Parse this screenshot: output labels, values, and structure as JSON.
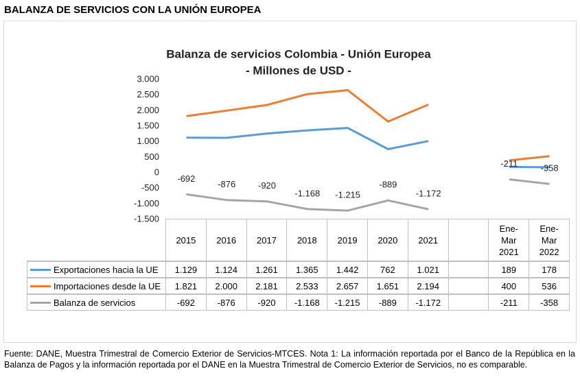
{
  "heading": "BALANZA DE SERVICIOS CON LA UNIÓN EUROPEA",
  "chart_data": {
    "type": "line",
    "title": "Balanza de servicios Colombia - Unión Europea",
    "subtitle": "- Millones de USD -",
    "categories": [
      "2015",
      "2016",
      "2017",
      "2018",
      "2019",
      "2020",
      "2021",
      null,
      "Ene-Mar 2021",
      "Ene-Mar 2022"
    ],
    "series": [
      {
        "name": "Exportaciones hacia la UE",
        "color": "#5b9bd5",
        "values": [
          1129,
          1124,
          1261,
          1365,
          1442,
          762,
          1021,
          null,
          189,
          178
        ],
        "value_labels": [
          "1.129",
          "1.124",
          "1.261",
          "1.365",
          "1.442",
          "762",
          "1.021",
          null,
          "189",
          "178"
        ]
      },
      {
        "name": "Importaciones desde la UE",
        "color": "#ed7d31",
        "values": [
          1821,
          2000,
          2181,
          2533,
          2657,
          1651,
          2194,
          null,
          400,
          536
        ],
        "value_labels": [
          "1.821",
          "2.000",
          "2.181",
          "2.533",
          "2.657",
          "1.651",
          "2.194",
          null,
          "400",
          "536"
        ]
      },
      {
        "name": "Balanza de servicios",
        "color": "#a5a5a5",
        "values": [
          -692,
          -876,
          -920,
          -1168,
          -1215,
          -889,
          -1172,
          null,
          -211,
          -358
        ],
        "value_labels": [
          "-692",
          "-876",
          "-920",
          "-1.168",
          "-1.215",
          "-889",
          "-1.172",
          null,
          "-211",
          "-358"
        ],
        "data_labels": true
      }
    ],
    "ylim": [
      -1500,
      3000
    ],
    "yticks": [
      {
        "value": 3000,
        "label": "3.000"
      },
      {
        "value": 2500,
        "label": "2.500"
      },
      {
        "value": 2000,
        "label": "2.000"
      },
      {
        "value": 1500,
        "label": "1.500"
      },
      {
        "value": 1000,
        "label": "1.000"
      },
      500,
      0,
      -500,
      {
        "value": -1000,
        "label": "-1.000"
      },
      {
        "value": -1500,
        "label": "-1.500"
      }
    ]
  },
  "footer": "Fuente: DANE, Muestra Trimestral de Comercio Exterior de Servicios-MTCES. Nota 1: La información reportada por el Banco de la República en la Balanza de Pagos y la información reportada por el DANE en la Muestra Trimestral de Comercio Exterior de Servicios, no es comparable."
}
